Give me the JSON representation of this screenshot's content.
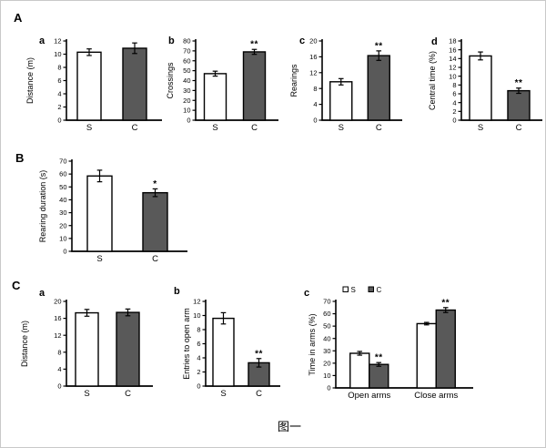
{
  "figure": {
    "caption": "图一",
    "background": "#ffffff",
    "bar_colors": [
      "#ffffff",
      "#595959"
    ],
    "axis_color": "#000000"
  },
  "sections": {
    "A": {
      "label": "A"
    },
    "B": {
      "label": "B"
    },
    "C": {
      "label": "C"
    }
  },
  "chart_data": [
    {
      "id": "A-a",
      "panel": "a",
      "type": "bar",
      "categories": [
        "S",
        "C"
      ],
      "values": [
        10.3,
        10.9
      ],
      "errors": [
        0.5,
        0.8
      ],
      "sig": [
        "",
        ""
      ],
      "ylabel": "Distance (m)",
      "ylim": [
        0,
        12
      ],
      "ytick_step": 2,
      "grid": false
    },
    {
      "id": "A-b",
      "panel": "b",
      "type": "bar",
      "categories": [
        "S",
        "C"
      ],
      "values": [
        47,
        69
      ],
      "errors": [
        2.5,
        2.5
      ],
      "sig": [
        "",
        "**"
      ],
      "ylabel": "Crossings",
      "ylim": [
        0,
        80
      ],
      "ytick_step": 10,
      "grid": false
    },
    {
      "id": "A-c",
      "panel": "c",
      "type": "bar",
      "categories": [
        "S",
        "C"
      ],
      "values": [
        9.7,
        16.3
      ],
      "errors": [
        0.8,
        1.2
      ],
      "sig": [
        "",
        "**"
      ],
      "ylabel": "Rearings",
      "ylim": [
        0,
        20
      ],
      "ytick_step": 4,
      "grid": false
    },
    {
      "id": "A-d",
      "panel": "d",
      "type": "bar",
      "categories": [
        "S",
        "C"
      ],
      "values": [
        14.6,
        6.7
      ],
      "errors": [
        0.9,
        0.6
      ],
      "sig": [
        "",
        "**"
      ],
      "ylabel": "Central time (%)",
      "ylim": [
        0,
        18
      ],
      "ytick_step": 2,
      "grid": false
    },
    {
      "id": "B",
      "panel": "",
      "type": "bar",
      "categories": [
        "S",
        "C"
      ],
      "values": [
        58.5,
        45.5
      ],
      "errors": [
        4.5,
        3
      ],
      "sig": [
        "",
        "*"
      ],
      "ylabel": "Rearing duration (s)",
      "ylim": [
        0,
        70
      ],
      "ytick_step": 10,
      "grid": false
    },
    {
      "id": "C-a",
      "panel": "a",
      "type": "bar",
      "categories": [
        "S",
        "C"
      ],
      "values": [
        17.3,
        17.4
      ],
      "errors": [
        0.8,
        0.8
      ],
      "sig": [
        "",
        ""
      ],
      "ylabel": "Distance (m)",
      "ylim": [
        0,
        20
      ],
      "ytick_step": 4,
      "grid": false
    },
    {
      "id": "C-b",
      "panel": "b",
      "type": "bar",
      "categories": [
        "S",
        "C"
      ],
      "values": [
        9.6,
        3.3
      ],
      "errors": [
        0.8,
        0.6
      ],
      "sig": [
        "",
        "**"
      ],
      "ylabel": "Entries to open arm",
      "ylim": [
        0,
        12
      ],
      "ytick_step": 2,
      "grid": false
    },
    {
      "id": "C-c",
      "panel": "c",
      "type": "bar",
      "categories": [
        "Open arms",
        "Close arms"
      ],
      "series": [
        {
          "name": "S",
          "values": [
            28,
            52
          ],
          "errors": [
            1.5,
            1
          ],
          "sig": [
            "",
            ""
          ]
        },
        {
          "name": "C",
          "values": [
            19,
            63
          ],
          "errors": [
            1.5,
            2
          ],
          "sig": [
            "**",
            "**"
          ]
        }
      ],
      "ylabel": "Time in arms (%)",
      "ylim": [
        0,
        70
      ],
      "ytick_step": 10,
      "legend": [
        "S",
        "C"
      ],
      "legend_position": "top",
      "grid": false
    }
  ]
}
